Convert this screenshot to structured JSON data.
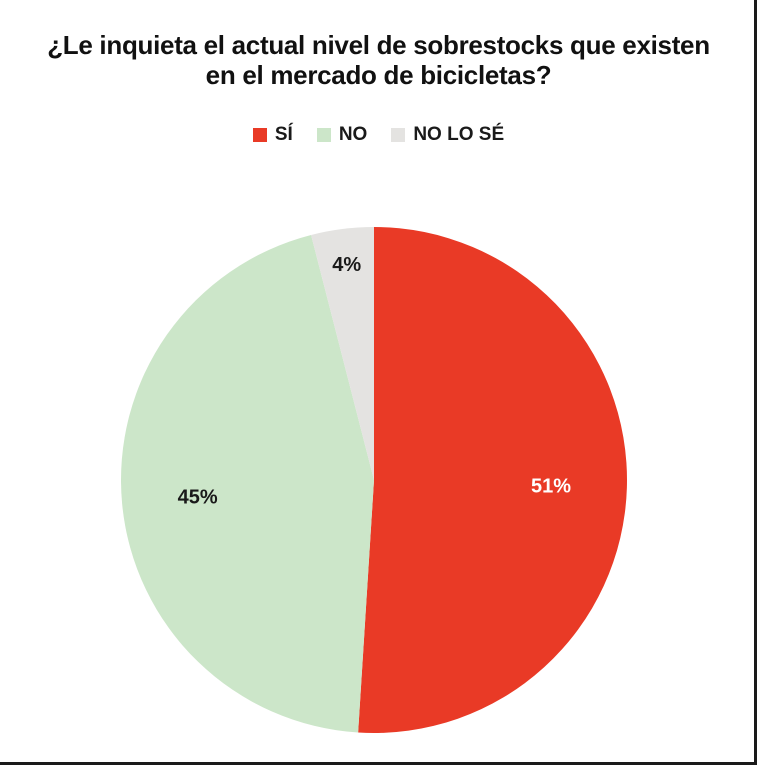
{
  "chart_data": {
    "type": "pie",
    "title_lines": [
      "¿Le inquieta el actual nivel de sobrestocks que existen",
      "en el mercado de bicicletas?"
    ],
    "legend_placement": "top",
    "slices": [
      {
        "name": "SÍ",
        "value": 51,
        "label": "51%",
        "color": "#E93A26",
        "label_color": "#ffffff"
      },
      {
        "name": "NO",
        "value": 45,
        "label": "45%",
        "color": "#CCE6C9",
        "label_color": "#1a1a1a"
      },
      {
        "name": "NO LO SÉ",
        "value": 4,
        "label": "4%",
        "color": "#E4E3E1",
        "label_color": "#1a1a1a"
      }
    ]
  }
}
